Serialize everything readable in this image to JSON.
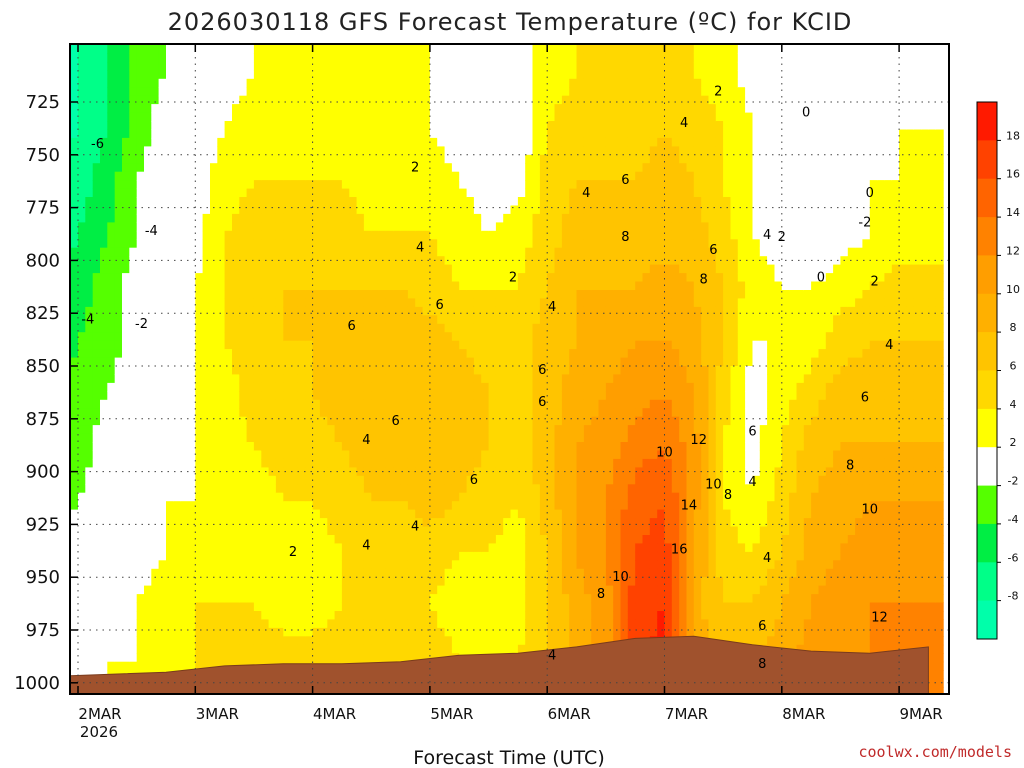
{
  "page": {
    "title": "2026030118 GFS Forecast Temperature (ºC) for KCID",
    "credit": "coolwx.com/models"
  },
  "chart_data": {
    "type": "heatmap",
    "title": "2026030118 GFS Forecast Temperature (ºC) for KCID",
    "xlabel": "Forecast Time (UTC)",
    "ylabel": "",
    "x_ticks": [
      {
        "label": "2MAR",
        "sub": "2026",
        "t": 6
      },
      {
        "label": "3MAR",
        "sub": "",
        "t": 30
      },
      {
        "label": "4MAR",
        "sub": "",
        "t": 54
      },
      {
        "label": "5MAR",
        "sub": "",
        "t": 78
      },
      {
        "label": "6MAR",
        "sub": "",
        "t": 102
      },
      {
        "label": "7MAR",
        "sub": "",
        "t": 126
      },
      {
        "label": "8MAR",
        "sub": "",
        "t": 150
      },
      {
        "label": "9MAR",
        "sub": "",
        "t": 174
      }
    ],
    "xlim_hours": [
      0,
      180
    ],
    "y_ticks": [
      725,
      750,
      775,
      800,
      825,
      850,
      875,
      900,
      925,
      950,
      975,
      1000
    ],
    "ylim_hPa": [
      700,
      1005
    ],
    "grid": true,
    "colorbar": {
      "labels": [
        "18",
        "16",
        "14",
        "12",
        "10",
        "8",
        "6",
        "4",
        "2",
        "-2",
        "-4",
        "-6",
        "-8"
      ],
      "bins": [
        {
          "min": 18,
          "max": 20,
          "color": "#ff1a00"
        },
        {
          "min": 16,
          "max": 18,
          "color": "#ff4200"
        },
        {
          "min": 14,
          "max": 16,
          "color": "#ff6400"
        },
        {
          "min": 12,
          "max": 14,
          "color": "#ff8200"
        },
        {
          "min": 10,
          "max": 12,
          "color": "#ff9e00"
        },
        {
          "min": 8,
          "max": 10,
          "color": "#ffb000"
        },
        {
          "min": 6,
          "max": 8,
          "color": "#ffc400"
        },
        {
          "min": 4,
          "max": 6,
          "color": "#ffd800"
        },
        {
          "min": 2,
          "max": 4,
          "color": "#ffff00"
        },
        {
          "min": -2,
          "max": 2,
          "color": "#ffffff"
        },
        {
          "min": -4,
          "max": -2,
          "color": "#55ff00"
        },
        {
          "min": -6,
          "max": -4,
          "color": "#00ee44"
        },
        {
          "min": -8,
          "max": -6,
          "color": "#00ff88"
        },
        {
          "min": -10,
          "max": -8,
          "color": "#00ffaa"
        }
      ]
    },
    "terrain": {
      "color": "#a0522d",
      "surface_hPa": [
        [
          0,
          997
        ],
        [
          12,
          996
        ],
        [
          24,
          995
        ],
        [
          36,
          992
        ],
        [
          48,
          991
        ],
        [
          60,
          991
        ],
        [
          72,
          990
        ],
        [
          84,
          987
        ],
        [
          96,
          986
        ],
        [
          108,
          983
        ],
        [
          120,
          979
        ],
        [
          132,
          978
        ],
        [
          144,
          982
        ],
        [
          156,
          985
        ],
        [
          168,
          986
        ],
        [
          180,
          983
        ]
      ]
    },
    "vertical_profiles": [
      {
        "t": 0,
        "T": [
          -9,
          -9,
          -9,
          -8,
          -7,
          -6,
          -5,
          -4,
          -3,
          -2,
          -2,
          -1
        ]
      },
      {
        "t": 6,
        "T": [
          -8,
          -8,
          -7,
          -6,
          -5,
          -4,
          -3,
          -3,
          -2,
          -1,
          -1,
          1
        ]
      },
      {
        "t": 12,
        "T": [
          -6,
          -6,
          -5,
          -4,
          -3,
          -3,
          -2,
          -1,
          -1,
          0,
          1,
          2
        ]
      },
      {
        "t": 18,
        "T": [
          -3,
          -3,
          -2,
          -2,
          -1,
          -1,
          0,
          0,
          1,
          1,
          2,
          2
        ]
      },
      {
        "t": 24,
        "T": [
          -2,
          -1,
          -1,
          0,
          0,
          1,
          1,
          1,
          2,
          2,
          3,
          3
        ]
      },
      {
        "t": 30,
        "T": [
          -1,
          0,
          1,
          1,
          2,
          2,
          2,
          2,
          2,
          3,
          4,
          4
        ]
      },
      {
        "t": 36,
        "T": [
          1,
          2,
          3,
          4,
          4,
          4,
          3,
          3,
          2,
          3,
          4,
          5
        ]
      },
      {
        "t": 42,
        "T": [
          2,
          3,
          4,
          5,
          5,
          5,
          5,
          4,
          3,
          3,
          4,
          5
        ]
      },
      {
        "t": 48,
        "T": [
          3,
          3,
          4,
          5,
          6,
          6,
          5,
          5,
          4,
          3,
          3,
          5
        ]
      },
      {
        "t": 54,
        "T": [
          3,
          4,
          4,
          5,
          6,
          6,
          6,
          5,
          4,
          3,
          3,
          5
        ]
      },
      {
        "t": 60,
        "T": [
          3,
          3,
          4,
          5,
          6,
          7,
          7,
          6,
          5,
          4,
          4,
          5
        ]
      },
      {
        "t": 66,
        "T": [
          2,
          3,
          3,
          4,
          6,
          7,
          7,
          7,
          6,
          5,
          4,
          5
        ]
      },
      {
        "t": 72,
        "T": [
          2,
          3,
          3,
          4,
          6,
          7,
          7,
          7,
          6,
          5,
          4,
          5
        ]
      },
      {
        "t": 78,
        "T": [
          2,
          2,
          3,
          4,
          5,
          7,
          7,
          7,
          7,
          5,
          4,
          5
        ]
      },
      {
        "t": 84,
        "T": [
          1,
          1,
          2,
          3,
          4,
          6,
          7,
          7,
          6,
          4,
          3,
          4
        ]
      },
      {
        "t": 90,
        "T": [
          0,
          0,
          1,
          2,
          4,
          5,
          6,
          6,
          5,
          4,
          3,
          4
        ]
      },
      {
        "t": 96,
        "T": [
          1,
          0,
          1,
          3,
          4,
          5,
          5,
          5,
          4,
          3,
          3,
          4
        ]
      },
      {
        "t": 102,
        "T": [
          3,
          4,
          5,
          5,
          6,
          7,
          7,
          7,
          7,
          6,
          6,
          6
        ]
      },
      {
        "t": 108,
        "T": [
          4,
          5,
          6,
          7,
          8,
          8,
          9,
          10,
          10,
          10,
          9,
          9
        ]
      },
      {
        "t": 114,
        "T": [
          4,
          5,
          6,
          7,
          8,
          9,
          10,
          11,
          12,
          12,
          11,
          11
        ]
      },
      {
        "t": 120,
        "T": [
          4,
          5,
          6,
          7,
          8,
          10,
          11,
          13,
          15,
          16,
          17,
          17
        ]
      },
      {
        "t": 126,
        "T": [
          5,
          6,
          7,
          7,
          9,
          10,
          12,
          14,
          16,
          17,
          18,
          19
        ]
      },
      {
        "t": 132,
        "T": [
          4,
          5,
          6,
          7,
          8,
          9,
          10,
          11,
          11,
          10,
          9,
          9
        ]
      },
      {
        "t": 138,
        "T": [
          3,
          4,
          4,
          5,
          6,
          6,
          5,
          4,
          4,
          5,
          6,
          7
        ]
      },
      {
        "t": 144,
        "T": [
          1,
          2,
          2,
          2,
          3,
          2,
          1,
          1,
          2,
          4,
          6,
          8
        ]
      },
      {
        "t": 150,
        "T": [
          0,
          0,
          0,
          1,
          2,
          2,
          3,
          4,
          5,
          6,
          8,
          9
        ]
      },
      {
        "t": 156,
        "T": [
          -1,
          -2,
          -1,
          0,
          2,
          3,
          5,
          7,
          8,
          9,
          10,
          11
        ]
      },
      {
        "t": 162,
        "T": [
          -1,
          -1,
          0,
          1,
          3,
          5,
          7,
          8,
          9,
          10,
          11,
          12
        ]
      },
      {
        "t": 168,
        "T": [
          1,
          1,
          2,
          2,
          4,
          6,
          7,
          8,
          10,
          11,
          12,
          12
        ]
      },
      {
        "t": 174,
        "T": [
          1,
          2,
          2,
          3,
          5,
          6,
          7,
          8,
          10,
          11,
          12,
          13
        ]
      },
      {
        "t": 180,
        "T": [
          1,
          2,
          2,
          3,
          5,
          6,
          7,
          8,
          10,
          11,
          12,
          12
        ]
      }
    ],
    "profile_levels_hPa": [
      710,
      737,
      762,
      788,
      813,
      838,
      863,
      888,
      913,
      938,
      963,
      990
    ],
    "contour_labels": [
      {
        "text": "-6",
        "t": 10,
        "p": 745
      },
      {
        "text": "-4",
        "t": 21,
        "p": 786
      },
      {
        "text": "-4",
        "t": 8,
        "p": 828
      },
      {
        "text": "-2",
        "t": 19,
        "p": 830
      },
      {
        "text": "2",
        "t": 75,
        "p": 756
      },
      {
        "text": "4",
        "t": 76,
        "p": 794
      },
      {
        "text": "6",
        "t": 80,
        "p": 821
      },
      {
        "text": "6",
        "t": 62,
        "p": 831
      },
      {
        "text": "6",
        "t": 71,
        "p": 876
      },
      {
        "text": "4",
        "t": 65,
        "p": 885
      },
      {
        "text": "6",
        "t": 87,
        "p": 904
      },
      {
        "text": "4",
        "t": 75,
        "p": 926
      },
      {
        "text": "4",
        "t": 65,
        "p": 935
      },
      {
        "text": "2",
        "t": 50,
        "p": 938
      },
      {
        "text": "4",
        "t": 110,
        "p": 768
      },
      {
        "text": "2",
        "t": 95,
        "p": 808
      },
      {
        "text": "4",
        "t": 103,
        "p": 822
      },
      {
        "text": "6",
        "t": 101,
        "p": 852
      },
      {
        "text": "6",
        "t": 101,
        "p": 867
      },
      {
        "text": "4",
        "t": 103,
        "p": 987
      },
      {
        "text": "6",
        "t": 118,
        "p": 762
      },
      {
        "text": "8",
        "t": 118,
        "p": 789
      },
      {
        "text": "8",
        "t": 113,
        "p": 958
      },
      {
        "text": "10",
        "t": 117,
        "p": 950
      },
      {
        "text": "8",
        "t": 134,
        "p": 809
      },
      {
        "text": "6",
        "t": 136,
        "p": 795
      },
      {
        "text": "4",
        "t": 130,
        "p": 735
      },
      {
        "text": "2",
        "t": 137,
        "p": 720
      },
      {
        "text": "4",
        "t": 147,
        "p": 788
      },
      {
        "text": "2",
        "t": 150,
        "p": 789
      },
      {
        "text": "0",
        "t": 155,
        "p": 730
      },
      {
        "text": "0",
        "t": 168,
        "p": 768
      },
      {
        "text": "-2",
        "t": 167,
        "p": 782
      },
      {
        "text": "0",
        "t": 158,
        "p": 808
      },
      {
        "text": "2",
        "t": 169,
        "p": 810
      },
      {
        "text": "4",
        "t": 172,
        "p": 840
      },
      {
        "text": "6",
        "t": 167,
        "p": 865
      },
      {
        "text": "8",
        "t": 164,
        "p": 897
      },
      {
        "text": "10",
        "t": 168,
        "p": 918
      },
      {
        "text": "12",
        "t": 170,
        "p": 969
      },
      {
        "text": "12",
        "t": 133,
        "p": 885
      },
      {
        "text": "10",
        "t": 126,
        "p": 891
      },
      {
        "text": "10",
        "t": 136,
        "p": 906
      },
      {
        "text": "8",
        "t": 139,
        "p": 911
      },
      {
        "text": "6",
        "t": 144,
        "p": 881
      },
      {
        "text": "4",
        "t": 144,
        "p": 905
      },
      {
        "text": "14",
        "t": 131,
        "p": 916
      },
      {
        "text": "16",
        "t": 129,
        "p": 937
      },
      {
        "text": "4",
        "t": 147,
        "p": 941
      },
      {
        "text": "6",
        "t": 146,
        "p": 973
      },
      {
        "text": "8",
        "t": 146,
        "p": 991
      }
    ]
  }
}
